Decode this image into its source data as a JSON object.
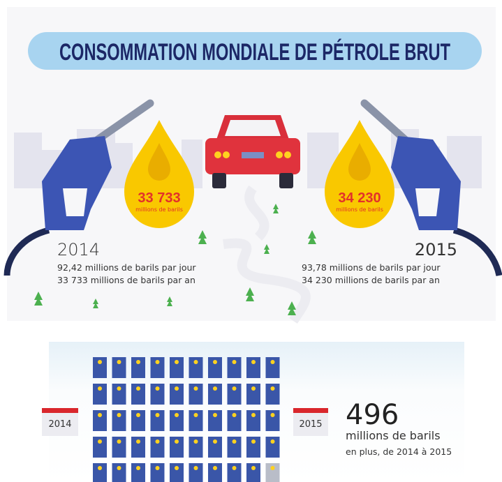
{
  "header": {
    "title": "CONSOMMATION MONDIALE DE PÉTROLE BRUT"
  },
  "drops": [
    {
      "value": "33 733",
      "unit": "millions de barils"
    },
    {
      "value": "34 230",
      "unit": "millions de barils"
    }
  ],
  "years": [
    {
      "year": "2014",
      "lines": [
        "92,42 millions de barils par jour",
        "33 733 millions de barils par an"
      ]
    },
    {
      "year": "2015",
      "lines": [
        "93,78 millions de barils par jour",
        "34 230 millions de barils par an"
      ]
    }
  ],
  "comparison": {
    "from": "2014",
    "to": "2015",
    "amount": "496",
    "unit": "millions de barils",
    "note": "en plus, de 2014 à 2015"
  }
}
